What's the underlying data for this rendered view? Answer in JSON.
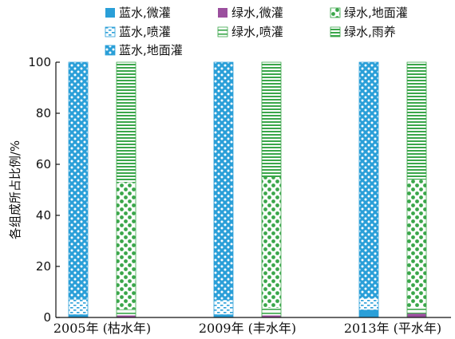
{
  "chart_data": {
    "type": "bar",
    "stacked": true,
    "ylabel": "各组成所占比例/%",
    "xlabel": "",
    "ylim": [
      0,
      100
    ],
    "yticks": [
      0,
      20,
      40,
      60,
      80,
      100
    ],
    "categories": [
      "2005年 (枯水年)",
      "2009年 (丰水年)",
      "2013年 (平水年)"
    ],
    "groups": [
      {
        "category": "2005年 (枯水年)",
        "bars": [
          {
            "type": "blue",
            "segments": {
              "蓝水,微灌": 1.2,
              "蓝水,喷灌": 5.8,
              "蓝水,地面灌": 93.0
            }
          },
          {
            "type": "green",
            "segments": {
              "绿水,微灌": 0.8,
              "绿水,喷灌": 2.4,
              "绿水,地面灌": 49.8,
              "绿水,雨养": 47.0
            }
          }
        ]
      },
      {
        "category": "2009年 (丰水年)",
        "bars": [
          {
            "type": "blue",
            "segments": {
              "蓝水,微灌": 1.2,
              "蓝水,喷灌": 5.6,
              "蓝水,地面灌": 93.2
            }
          },
          {
            "type": "green",
            "segments": {
              "绿水,微灌": 0.8,
              "绿水,喷灌": 3.0,
              "绿水,地面灌": 51.2,
              "绿水,雨养": 45.0
            }
          }
        ]
      },
      {
        "category": "2013年 (平水年)",
        "bars": [
          {
            "type": "blue",
            "segments": {
              "蓝水,微灌": 3.0,
              "蓝水,喷灌": 4.5,
              "蓝水,地面灌": 92.5
            }
          },
          {
            "type": "green",
            "segments": {
              "绿水,微灌": 1.5,
              "绿水,喷灌": 2.5,
              "绿水,地面灌": 50.0,
              "绿水,雨养": 46.0
            }
          }
        ]
      }
    ],
    "legend": {
      "position": "top",
      "items": [
        {
          "key": "蓝水,微灌",
          "label": "蓝水,微灌",
          "color": "#2a9fd8",
          "pattern": "solid"
        },
        {
          "key": "绿水,微灌",
          "label": "绿水,微灌",
          "color": "#9b4f9e",
          "pattern": "solid"
        },
        {
          "key": "绿水,地面灌",
          "label": "绿水,地面灌",
          "color": "#3aa64a",
          "pattern": "dots"
        },
        {
          "key": "蓝水,喷灌",
          "label": "蓝水,喷灌",
          "color": "#2a9fd8",
          "pattern": "dashes"
        },
        {
          "key": "绿水,喷灌",
          "label": "绿水,喷灌",
          "color": "#3aa64a",
          "pattern": "halfline"
        },
        {
          "key": "绿水,雨养",
          "label": "绿水,雨养",
          "color": "#3aa64a",
          "pattern": "stripes"
        },
        {
          "key": "蓝水,地面灌",
          "label": "蓝水,地面灌",
          "color": "#2a9fd8",
          "pattern": "dots"
        }
      ]
    },
    "grid": false
  }
}
